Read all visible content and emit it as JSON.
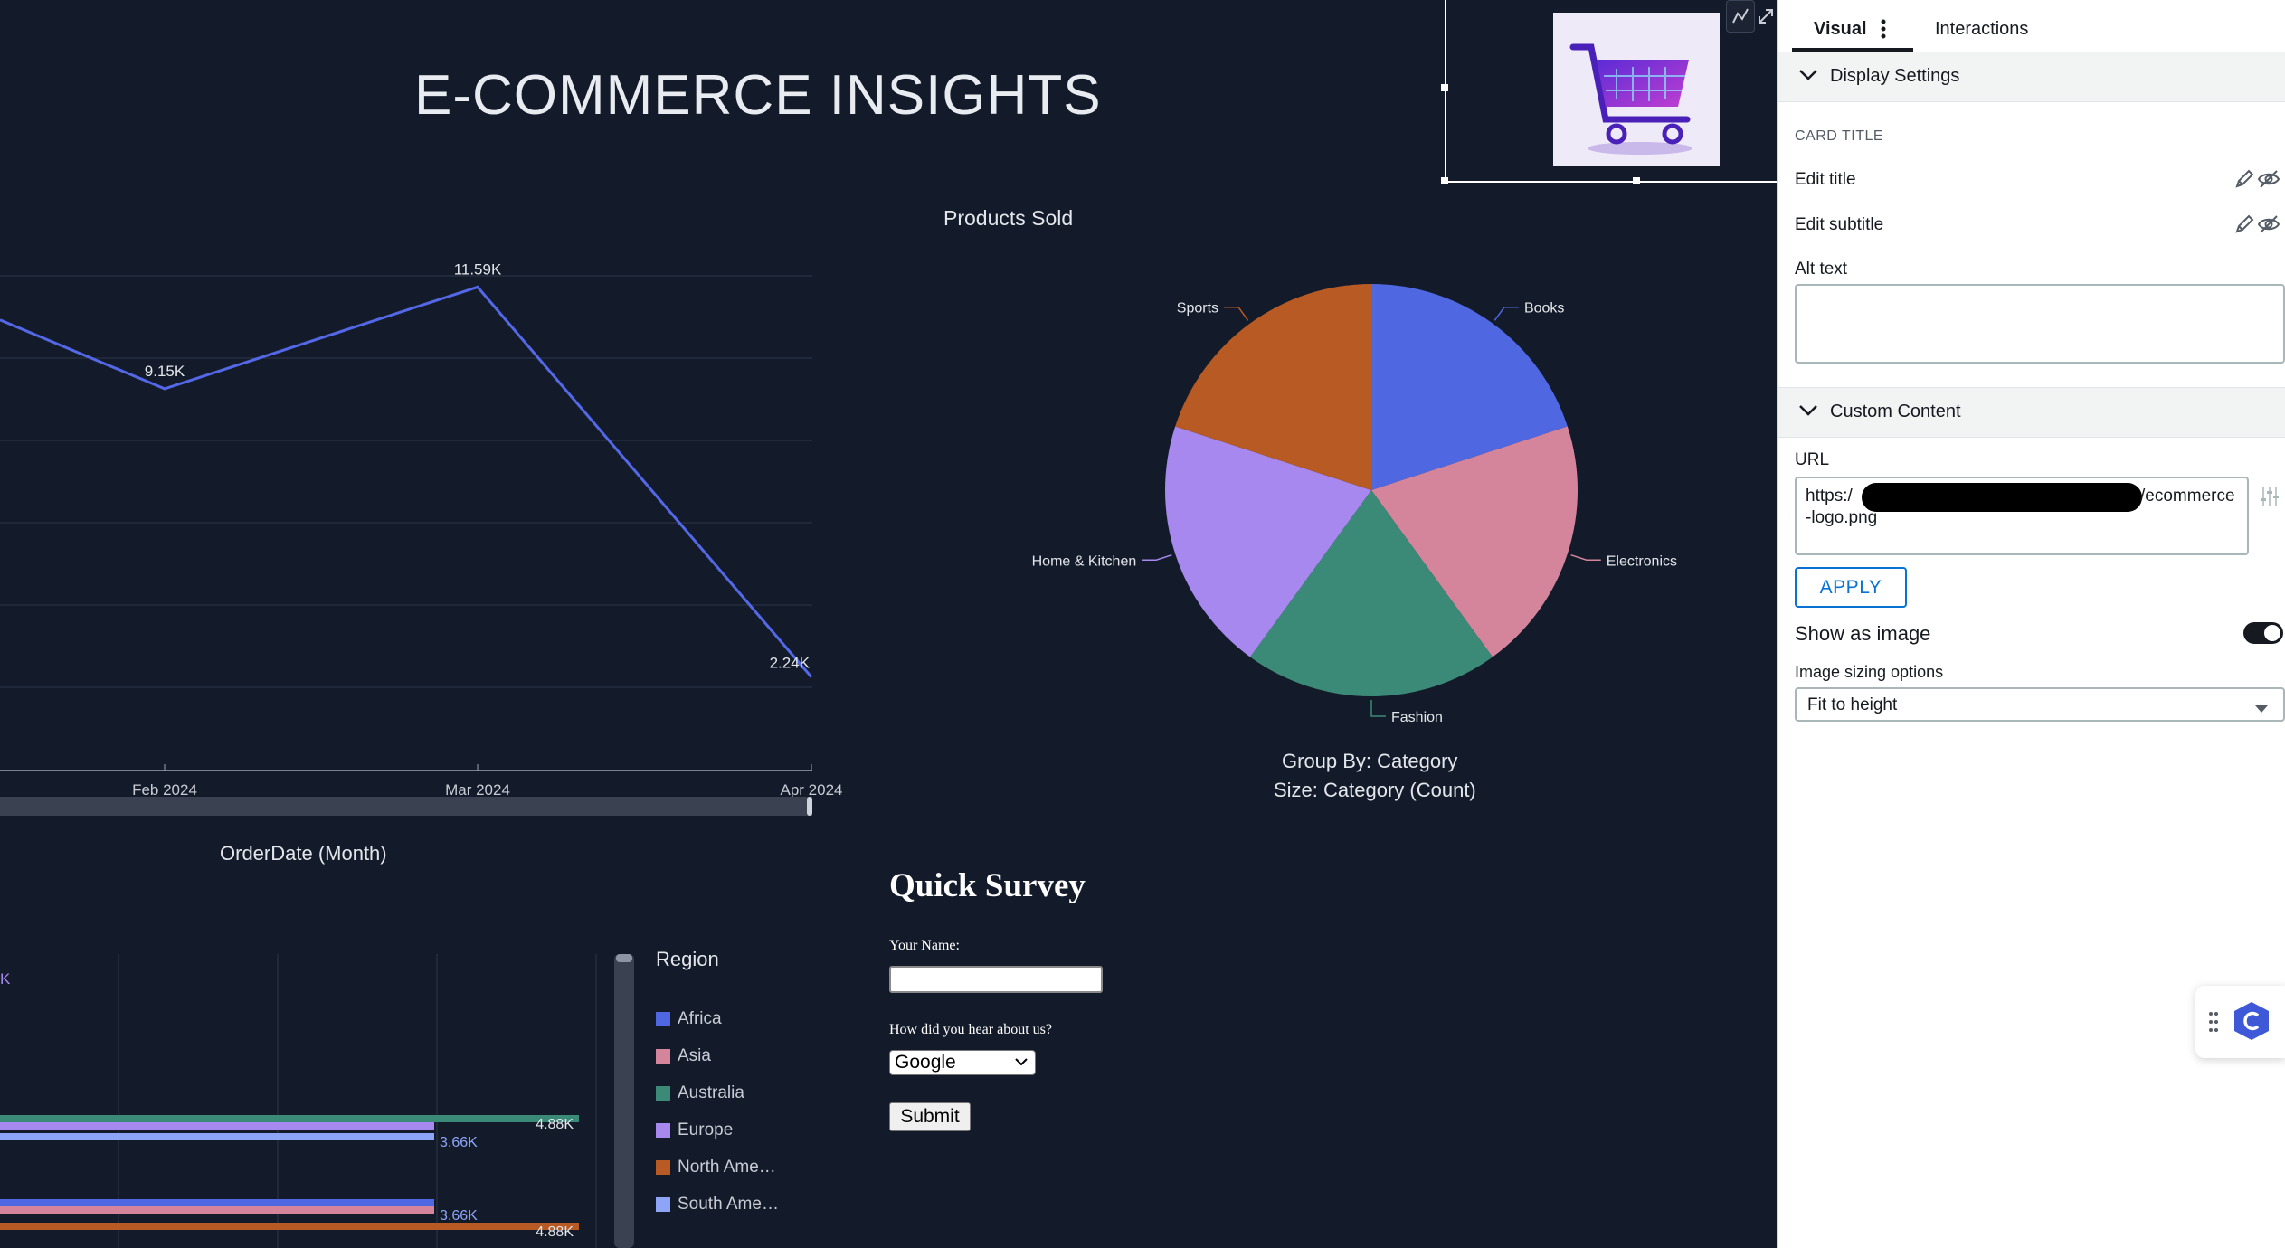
{
  "dashboard": {
    "title": "E-COMMERCE INSIGHTS",
    "line_chart_xlabel": "OrderDate (Month)",
    "pie_group_by": "Group By: Category",
    "pie_size": "Size: Category (Count)"
  },
  "chart_data": [
    {
      "type": "line",
      "title": "",
      "xlabel": "OrderDate (Month)",
      "categories": [
        "Feb 2024",
        "Mar 2024",
        "Apr 2024"
      ],
      "series": [
        {
          "name": "Products Sold",
          "values": [
            9.15,
            11.59,
            2.24
          ],
          "labels": [
            "9.15K",
            "11.59K",
            "2.24K"
          ]
        }
      ],
      "unit": "K",
      "color": "#5468e7"
    },
    {
      "type": "pie",
      "title": "Products Sold",
      "categories": [
        "Books",
        "Electronics",
        "Fashion",
        "Home & Kitchen",
        "Sports"
      ],
      "values": [
        1,
        1,
        1,
        1,
        1
      ],
      "colors": [
        "#4f68e1",
        "#d5859b",
        "#3b8a78",
        "#a688ee",
        "#b85a23"
      ]
    },
    {
      "type": "bar",
      "orientation": "horizontal",
      "legend_title": "Region",
      "legend": [
        {
          "name": "Africa",
          "color": "#4f68e1"
        },
        {
          "name": "Asia",
          "color": "#d5859b"
        },
        {
          "name": "Australia",
          "color": "#3b8a78"
        },
        {
          "name": "Europe",
          "color": "#a688ee"
        },
        {
          "name": "North Ame…",
          "color": "#b85a23"
        },
        {
          "name": "South Ame…",
          "color": "#8ea5f7"
        }
      ],
      "visible_bars": [
        {
          "region": "Australia",
          "value": 4.88,
          "label": "4.88K"
        },
        {
          "region": "Europe",
          "value": 3.66,
          "label": ""
        },
        {
          "region": "South America",
          "value": 3.66,
          "label": "3.66K"
        },
        {
          "region": "Africa",
          "value": 3.66,
          "label": ""
        },
        {
          "region": "Asia",
          "value": 3.66,
          "label": "3.66K"
        },
        {
          "region": "North America",
          "value": 4.88,
          "label": "4.88K"
        }
      ],
      "partial_label": "K"
    }
  ],
  "survey": {
    "title": "Quick Survey",
    "name_label": "Your Name:",
    "hear_label": "How did you hear about us?",
    "selected_option": "Google",
    "submit_label": "Submit"
  },
  "panel": {
    "tabs": [
      "Visual",
      "Interactions"
    ],
    "display_settings": "Display Settings",
    "card_title": "CARD TITLE",
    "edit_title": "Edit title",
    "edit_subtitle": "Edit subtitle",
    "alt_text": "Alt text",
    "custom_content": "Custom Content",
    "url_label": "URL",
    "url_value_start": "https:/",
    "url_value_end": "/ecommerce",
    "url_value_line2": "-logo.png",
    "apply": "APPLY",
    "show_as_image": "Show as image",
    "image_sizing": "Image sizing options",
    "sizing_value": "Fit to height"
  }
}
